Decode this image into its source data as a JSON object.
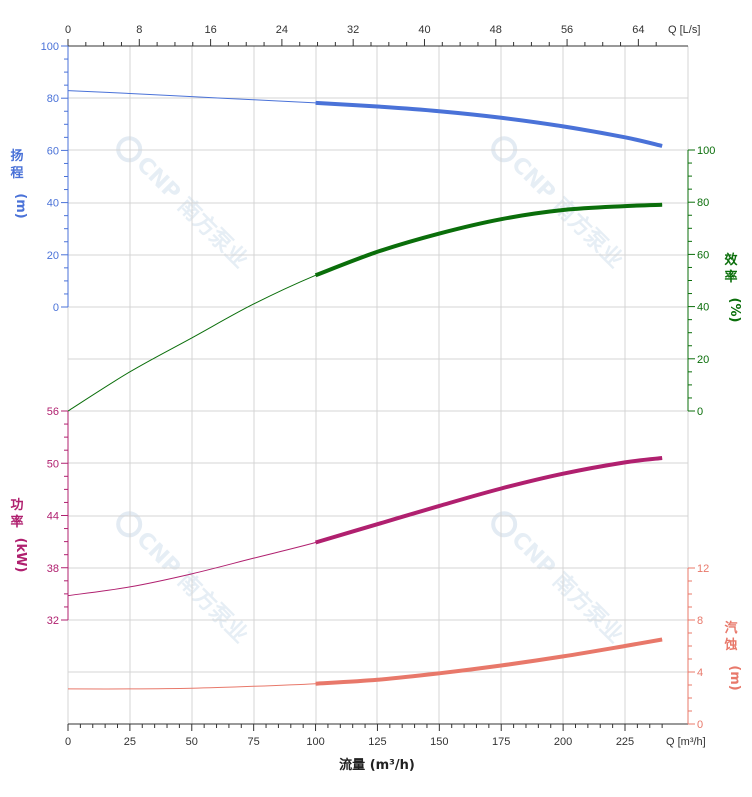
{
  "chart_data": {
    "type": "line",
    "x_bottom": {
      "label": "流量 (m³/h)",
      "unit_label": "Q [m³/h]",
      "ticks": [
        0,
        25,
        50,
        75,
        100,
        125,
        150,
        175,
        200,
        225
      ],
      "range": [
        0,
        240
      ]
    },
    "x_top": {
      "unit_label": "Q [L/s]",
      "ticks": [
        0,
        8,
        16,
        24,
        32,
        40,
        48,
        56,
        64
      ]
    },
    "axes": {
      "head": {
        "label": [
          "扬",
          "程",
          "(m)"
        ],
        "ticks": [
          0,
          20,
          40,
          60,
          80,
          100
        ],
        "color": "#4a72d8"
      },
      "efficiency": {
        "label": [
          "效",
          "率",
          "(%)"
        ],
        "ticks": [
          0,
          20,
          40,
          60,
          80,
          100
        ],
        "color": "#0a6e0a"
      },
      "power": {
        "label": [
          "功",
          "率",
          "(kW)"
        ],
        "ticks": [
          32,
          38,
          44,
          50,
          56
        ],
        "color": "#b0206f"
      },
      "npsh": {
        "label": [
          "汽",
          "蚀",
          "(m)"
        ],
        "ticks": [
          0,
          4,
          8,
          12
        ],
        "color": "#e8786a"
      }
    },
    "series": [
      {
        "name": "扬程",
        "x": [
          0,
          25,
          50,
          75,
          100,
          125,
          150,
          175,
          200,
          225,
          240
        ],
        "y": [
          82.9,
          81.8,
          80.6,
          79.4,
          78.2,
          76.8,
          75.0,
          72.5,
          69.2,
          65.0,
          61.7
        ],
        "operating_range": [
          100,
          240
        ]
      },
      {
        "name": "效率",
        "x": [
          0,
          25,
          50,
          75,
          100,
          125,
          150,
          175,
          200,
          225,
          240
        ],
        "y": [
          0,
          15,
          28,
          41,
          52,
          61,
          68,
          73.5,
          77,
          78.5,
          79
        ],
        "operating_range": [
          100,
          240
        ]
      },
      {
        "name": "功率",
        "x": [
          0,
          25,
          50,
          75,
          100,
          125,
          150,
          175,
          200,
          225,
          240
        ],
        "y": [
          34.8,
          35.8,
          37.3,
          39.1,
          40.9,
          43.0,
          45.1,
          47.1,
          48.8,
          50.1,
          50.6
        ],
        "operating_range": [
          100,
          240
        ]
      },
      {
        "name": "汽蚀",
        "x": [
          0,
          25,
          50,
          75,
          100,
          125,
          150,
          175,
          200,
          225,
          240
        ],
        "y": [
          2.7,
          2.7,
          2.75,
          2.9,
          3.1,
          3.4,
          3.9,
          4.5,
          5.2,
          6.0,
          6.5
        ],
        "operating_range": [
          100,
          240
        ]
      }
    ],
    "grid": true,
    "watermark": "CNP 南方泵业"
  }
}
